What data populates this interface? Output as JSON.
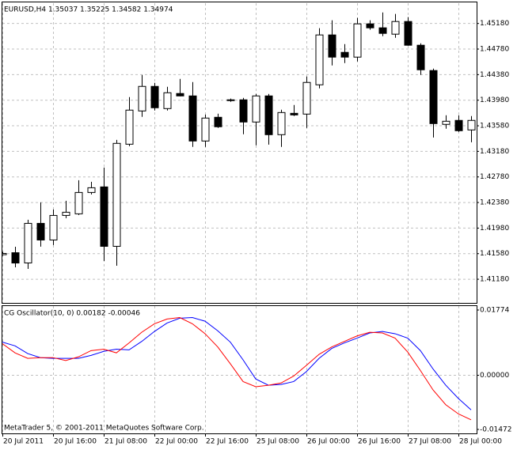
{
  "chart_data": [
    {
      "type": "candlestick",
      "title": "EURUSD,H4  1.35037 1.35225 1.34582 1.34974",
      "categories": [
        "20 Jul 2011",
        null,
        null,
        null,
        "20 Jul 16:00",
        null,
        null,
        null,
        "21 Jul 08:00",
        null,
        null,
        null,
        "22 Jul 00:00",
        null,
        null,
        null,
        "22 Jul 16:00",
        null,
        null,
        null,
        "25 Jul 08:00",
        null,
        null,
        null,
        "26 Jul 00:00",
        null,
        null,
        null,
        "26 Jul 16:00",
        null,
        null,
        null,
        "27 Jul 08:00",
        null,
        null,
        null,
        "28 Jul 00:00",
        null
      ],
      "open": [
        1.4157,
        1.41601,
        1.41441,
        1.4206,
        1.418,
        1.42184,
        1.42209,
        1.42543,
        1.4263,
        1.41701,
        1.43298,
        1.43818,
        1.44202,
        1.43855,
        1.44091,
        1.44053,
        1.43348,
        1.43719,
        1.43992,
        1.43992,
        1.43645,
        1.44053,
        1.43447,
        1.43781,
        1.43769,
        1.44227,
        1.45007,
        1.44734,
        1.4466,
        1.4518,
        1.45118,
        1.45019,
        1.45217,
        1.44846,
        1.4445,
        1.43608,
        1.4367,
        1.43521
      ],
      "high": [
        1.4161,
        1.41688,
        1.4211,
        1.42382,
        1.42271,
        1.42407,
        1.42729,
        1.42704,
        1.42927,
        1.4336,
        1.44029,
        1.44375,
        1.44252,
        1.4419,
        1.44313,
        1.44264,
        1.43756,
        1.43769,
        1.44005,
        1.44016,
        1.44078,
        1.44078,
        1.43831,
        1.43905,
        1.44351,
        1.45106,
        1.4523,
        1.44858,
        1.45267,
        1.4523,
        1.45353,
        1.45329,
        1.45279,
        1.4487,
        1.44474,
        1.43744,
        1.43744,
        1.43732
      ],
      "low": [
        1.4155,
        1.41366,
        1.41342,
        1.41689,
        1.41714,
        1.42135,
        1.42184,
        1.42506,
        1.41466,
        1.41392,
        1.43261,
        1.43719,
        1.43818,
        1.43818,
        1.44041,
        1.43249,
        1.43249,
        1.43546,
        1.43955,
        1.43447,
        1.43274,
        1.43286,
        1.43249,
        1.43732,
        1.43546,
        1.44165,
        1.44524,
        1.44561,
        1.44586,
        1.45081,
        1.44982,
        1.44957,
        1.44833,
        1.44375,
        1.43397,
        1.43534,
        1.43484,
        1.43323
      ],
      "close": [
        1.4159,
        1.4144,
        1.4206,
        1.418,
        1.42184,
        1.42234,
        1.42543,
        1.42617,
        1.41701,
        1.43311,
        1.43831,
        1.44202,
        1.43868,
        1.44103,
        1.44053,
        1.43348,
        1.43707,
        1.43571,
        1.4398,
        1.43645,
        1.44053,
        1.43447,
        1.43793,
        1.43756,
        1.44264,
        1.45007,
        1.4466,
        1.4466,
        1.4518,
        1.45118,
        1.45031,
        1.45217,
        1.44846,
        1.44462,
        1.4362,
        1.43657,
        1.43509,
        1.4367
      ],
      "up_color": "#ffffff",
      "down_color": "#000000",
      "color": "#000000",
      "ylim": [
        1.4081,
        1.4551
      ],
      "yticks": [
        {
          "value": 1.4518,
          "label": "1.45180"
        },
        {
          "value": 1.4478,
          "label": "1.44780"
        },
        {
          "value": 1.4438,
          "label": "1.44380"
        },
        {
          "value": 1.4398,
          "label": "1.43980"
        },
        {
          "value": 1.4358,
          "label": "1.43580"
        },
        {
          "value": 1.4318,
          "label": "1.43180"
        },
        {
          "value": 1.4278,
          "label": "1.42780"
        },
        {
          "value": 1.4238,
          "label": "1.42380"
        },
        {
          "value": 1.4198,
          "label": "1.41980"
        },
        {
          "value": 1.4158,
          "label": "1.41580"
        },
        {
          "value": 1.4118,
          "label": "1.41180"
        }
      ],
      "grid": true
    },
    {
      "type": "line",
      "title": "CG Oscillator(10, 0) 0.00182 -0.00046",
      "series": [
        {
          "color": "#0000ff",
          "values": [
            0.009,
            0.008,
            0.0059,
            0.0048,
            0.0046,
            0.0046,
            0.0046,
            0.0054,
            0.0065,
            0.0071,
            0.0069,
            0.0092,
            0.0119,
            0.0142,
            0.0155,
            0.0157,
            0.0147,
            0.0121,
            0.009,
            0.0042,
            -0.001,
            -0.0027,
            -0.0025,
            -0.0017,
            0.001,
            0.0046,
            0.0073,
            0.0088,
            0.0101,
            0.0115,
            0.0119,
            0.0113,
            0.0101,
            0.0067,
            0.0017,
            -0.0027,
            -0.0063,
            -0.0094
          ]
        },
        {
          "color": "#ff0000",
          "values": [
            0.0086,
            0.0061,
            0.0046,
            0.0048,
            0.0048,
            0.004,
            0.005,
            0.0067,
            0.0071,
            0.0061,
            0.0088,
            0.0117,
            0.014,
            0.0153,
            0.0157,
            0.014,
            0.0113,
            0.0077,
            0.0031,
            -0.0017,
            -0.0031,
            -0.0027,
            -0.0021,
            -0.0002,
            0.0027,
            0.0057,
            0.0077,
            0.0092,
            0.0107,
            0.0117,
            0.0115,
            0.0101,
            0.0063,
            0.0013,
            -0.004,
            -0.008,
            -0.0105,
            -0.0121
          ]
        }
      ],
      "ylim": [
        -0.01472,
        0.01774
      ],
      "yticks": [
        0.01774,
        {
          "value": 0,
          "label": "0.00000"
        },
        -0.01472
      ],
      "grid": true,
      "footer": "MetaTrader 5, © 2001-2011 MetaQuotes Software Corp."
    }
  ]
}
